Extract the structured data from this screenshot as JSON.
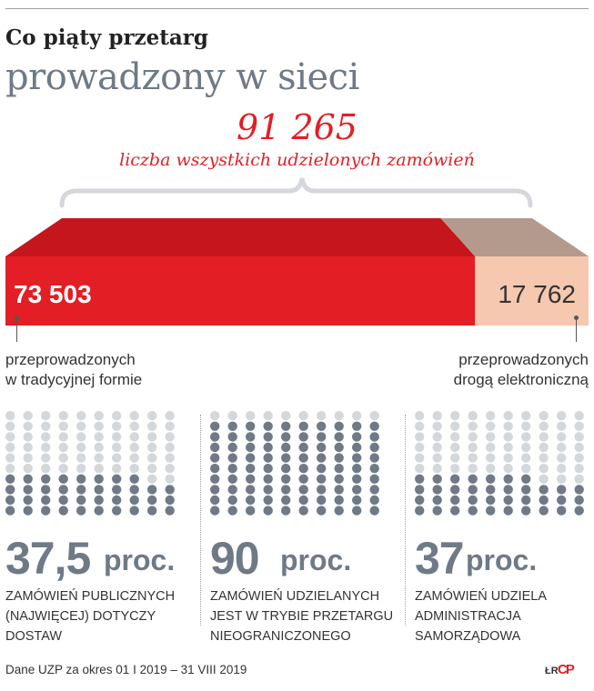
{
  "header": {
    "title": "Co piąty przetarg",
    "subtitle": "prowadzony w sieci"
  },
  "total": {
    "value": "91 265",
    "label": "liczba wszystkich udzielonych zamówień"
  },
  "chart_data": {
    "type": "bar",
    "orientation": "horizontal-stacked",
    "total": 91265,
    "series": [
      {
        "value": 73503,
        "value_label": "73 503",
        "caption": "przeprowadzonych\nw tradycyjnej formie",
        "color": "#e31e24"
      },
      {
        "value": 17762,
        "value_label": "17 762",
        "caption": "przeprowadzonych\ndrogą elektroniczną",
        "color": "#f6c8b0"
      }
    ]
  },
  "stats": [
    {
      "value": "37,5",
      "unit": "proc.",
      "percent": 37.5,
      "description": "ZAMÓWIEŃ PUBLICZNYCH (NAJWIĘCEJ) DOTYCZY DOSTAW"
    },
    {
      "value": "90",
      "unit": "proc.",
      "percent": 90,
      "description": "ZAMÓWIEŃ UDZIELANYCH JEST W TRYBIE PRZETARGU NIEOGRANICZONEGO"
    },
    {
      "value": "37",
      "unit": "proc.",
      "percent": 37,
      "description": "ZAMÓWIEŃ UDZIELA ADMINISTRACJA SAMORZĄDOWA"
    }
  ],
  "colors": {
    "accent": "#e31e24",
    "muted": "#6f7a86",
    "dot_on": "#6f7a86",
    "dot_off": "#d4d7db"
  },
  "footer": {
    "source": "Dane UZP za okres 01 I 2019 – 31 VIII 2019",
    "signature": "ŁR",
    "logo": "CP"
  }
}
